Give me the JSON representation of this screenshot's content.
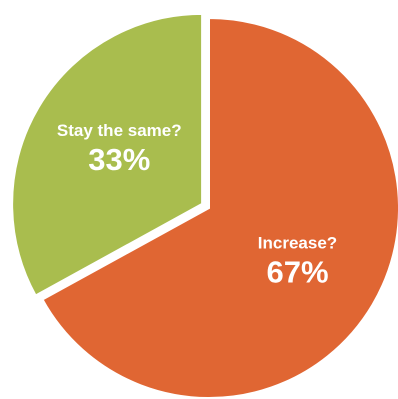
{
  "chart_data": {
    "type": "pie",
    "title": "",
    "slices": [
      {
        "label": "Increase?",
        "value": 67,
        "display": "67%",
        "color": "#E06633",
        "exploded": false
      },
      {
        "label": "Stay the same?",
        "value": 33,
        "display": "33%",
        "color": "#A9BD4E",
        "exploded": true
      }
    ],
    "legend": "none"
  }
}
